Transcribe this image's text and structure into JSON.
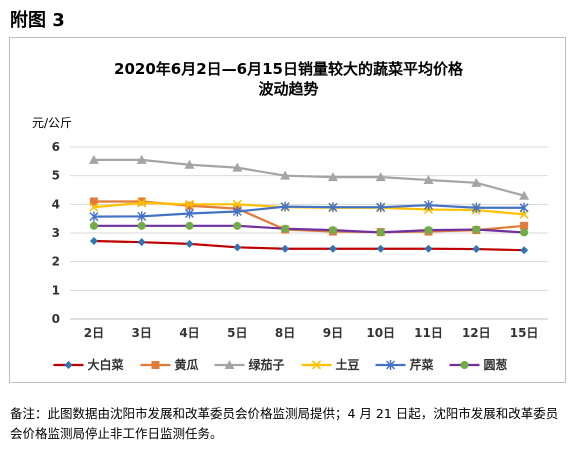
{
  "heading": "附图 3",
  "note": "备注：此图数据由沈阳市发展和改革委员会价格监测局提供；4 月 21 日起，沈阳市发展和改革委员会价格监测局停止非工作日监测任务。",
  "chart_data": {
    "type": "line",
    "title_line1": "2020年6月2日—6月15日销量较大的蔬菜平均价格",
    "title_line2": "波动趋势",
    "ylabel": "元/公斤",
    "xlabel": "",
    "categories": [
      "2日",
      "3日",
      "4日",
      "5日",
      "8日",
      "9日",
      "10日",
      "11日",
      "12日",
      "15日"
    ],
    "ylim": [
      0,
      6
    ],
    "yticks": [
      0,
      1,
      2,
      3,
      4,
      5,
      6
    ],
    "grid": true,
    "legend": "bottom",
    "series": [
      {
        "name": "大白菜",
        "color": "#c00000",
        "marker": "diamond",
        "markerColor": "#2e75b6",
        "values": [
          2.72,
          2.68,
          2.62,
          2.5,
          2.45,
          2.45,
          2.45,
          2.45,
          2.44,
          2.4
        ]
      },
      {
        "name": "黄瓜",
        "color": "#e07b39",
        "marker": "square",
        "markerColor": "#e07b39",
        "values": [
          4.1,
          4.1,
          3.95,
          3.85,
          3.12,
          3.05,
          3.03,
          3.05,
          3.1,
          3.25
        ]
      },
      {
        "name": "绿茄子",
        "color": "#a5a5a5",
        "marker": "triangle",
        "markerColor": "#a5a5a5",
        "values": [
          5.55,
          5.55,
          5.38,
          5.28,
          5.0,
          4.95,
          4.95,
          4.85,
          4.75,
          4.3
        ]
      },
      {
        "name": "土豆",
        "color": "#ffc000",
        "marker": "x",
        "markerColor": "#ffc000",
        "values": [
          3.9,
          4.05,
          4.0,
          4.0,
          3.9,
          3.88,
          3.88,
          3.82,
          3.8,
          3.65
        ]
      },
      {
        "name": "芹菜",
        "color": "#4472c4",
        "marker": "star",
        "markerColor": "#4472c4",
        "values": [
          3.57,
          3.58,
          3.68,
          3.75,
          3.92,
          3.9,
          3.9,
          3.97,
          3.88,
          3.88
        ]
      },
      {
        "name": "圆葱",
        "color": "#7030a0",
        "marker": "circle",
        "markerColor": "#70ad47",
        "values": [
          3.25,
          3.25,
          3.25,
          3.25,
          3.15,
          3.1,
          3.02,
          3.1,
          3.12,
          3.02
        ]
      }
    ]
  }
}
